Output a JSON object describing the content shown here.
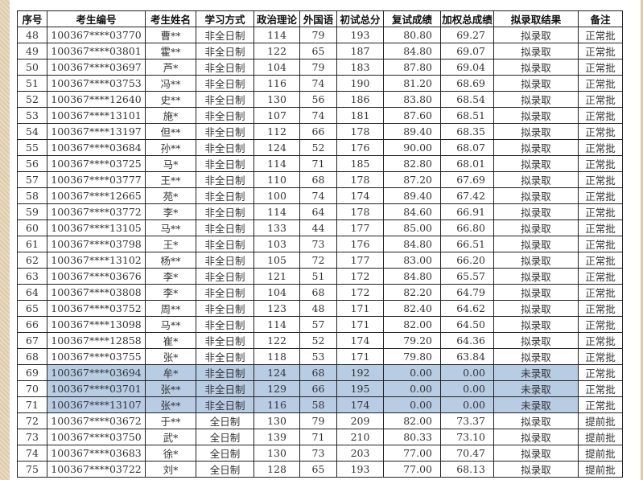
{
  "highlight_color": "#b8cce4",
  "headers": [
    "序号",
    "考生编号",
    "考生姓名",
    "学习方式",
    "政治理论",
    "外国语",
    "初试总分",
    "复试成绩",
    "加权总成绩",
    "拟录取结果",
    "备注"
  ],
  "rows": [
    {
      "no": "48",
      "id": "100367****03770",
      "name": "曹**",
      "mode": "非全日制",
      "politics": "114",
      "foreign": "79",
      "initial": "193",
      "retest": "80.80",
      "weighted": "69.27",
      "result": "拟录取",
      "note": "正常批",
      "highlight": false
    },
    {
      "no": "49",
      "id": "100367****03801",
      "name": "霍**",
      "mode": "非全日制",
      "politics": "122",
      "foreign": "65",
      "initial": "187",
      "retest": "84.80",
      "weighted": "69.07",
      "result": "拟录取",
      "note": "正常批",
      "highlight": false
    },
    {
      "no": "50",
      "id": "100367****03697",
      "name": "芦*",
      "mode": "非全日制",
      "politics": "104",
      "foreign": "79",
      "initial": "183",
      "retest": "87.80",
      "weighted": "69.04",
      "result": "拟录取",
      "note": "正常批",
      "highlight": false
    },
    {
      "no": "51",
      "id": "100367****03753",
      "name": "冯**",
      "mode": "非全日制",
      "politics": "116",
      "foreign": "74",
      "initial": "190",
      "retest": "81.20",
      "weighted": "68.69",
      "result": "拟录取",
      "note": "正常批",
      "highlight": false
    },
    {
      "no": "52",
      "id": "100367****12640",
      "name": "史**",
      "mode": "非全日制",
      "politics": "130",
      "foreign": "56",
      "initial": "186",
      "retest": "83.80",
      "weighted": "68.54",
      "result": "拟录取",
      "note": "正常批",
      "highlight": false
    },
    {
      "no": "53",
      "id": "100367****13101",
      "name": "施*",
      "mode": "非全日制",
      "politics": "107",
      "foreign": "74",
      "initial": "181",
      "retest": "87.60",
      "weighted": "68.51",
      "result": "拟录取",
      "note": "正常批",
      "highlight": false
    },
    {
      "no": "54",
      "id": "100367****13197",
      "name": "但**",
      "mode": "非全日制",
      "politics": "112",
      "foreign": "66",
      "initial": "178",
      "retest": "89.40",
      "weighted": "68.35",
      "result": "拟录取",
      "note": "正常批",
      "highlight": false
    },
    {
      "no": "55",
      "id": "100367****03684",
      "name": "孙**",
      "mode": "非全日制",
      "politics": "124",
      "foreign": "52",
      "initial": "176",
      "retest": "90.00",
      "weighted": "68.07",
      "result": "拟录取",
      "note": "正常批",
      "highlight": false
    },
    {
      "no": "56",
      "id": "100367****03725",
      "name": "马*",
      "mode": "非全日制",
      "politics": "114",
      "foreign": "71",
      "initial": "185",
      "retest": "82.80",
      "weighted": "68.01",
      "result": "拟录取",
      "note": "正常批",
      "highlight": false
    },
    {
      "no": "57",
      "id": "100367****03777",
      "name": "王**",
      "mode": "非全日制",
      "politics": "110",
      "foreign": "68",
      "initial": "178",
      "retest": "87.20",
      "weighted": "67.69",
      "result": "拟录取",
      "note": "正常批",
      "highlight": false
    },
    {
      "no": "58",
      "id": "100367****12665",
      "name": "苑*",
      "mode": "非全日制",
      "politics": "100",
      "foreign": "74",
      "initial": "174",
      "retest": "89.40",
      "weighted": "67.42",
      "result": "拟录取",
      "note": "正常批",
      "highlight": false
    },
    {
      "no": "59",
      "id": "100367****03772",
      "name": "李*",
      "mode": "非全日制",
      "politics": "114",
      "foreign": "64",
      "initial": "178",
      "retest": "84.60",
      "weighted": "66.91",
      "result": "拟录取",
      "note": "正常批",
      "highlight": false
    },
    {
      "no": "60",
      "id": "100367****13105",
      "name": "马**",
      "mode": "非全日制",
      "politics": "133",
      "foreign": "44",
      "initial": "177",
      "retest": "85.00",
      "weighted": "66.80",
      "result": "拟录取",
      "note": "正常批",
      "highlight": false
    },
    {
      "no": "61",
      "id": "100367****03798",
      "name": "王*",
      "mode": "非全日制",
      "politics": "103",
      "foreign": "73",
      "initial": "176",
      "retest": "84.80",
      "weighted": "66.51",
      "result": "拟录取",
      "note": "正常批",
      "highlight": false
    },
    {
      "no": "62",
      "id": "100367****13102",
      "name": "杨**",
      "mode": "非全日制",
      "politics": "105",
      "foreign": "72",
      "initial": "177",
      "retest": "83.00",
      "weighted": "66.20",
      "result": "拟录取",
      "note": "正常批",
      "highlight": false
    },
    {
      "no": "63",
      "id": "100367****03676",
      "name": "李*",
      "mode": "非全日制",
      "politics": "121",
      "foreign": "51",
      "initial": "172",
      "retest": "84.80",
      "weighted": "65.57",
      "result": "拟录取",
      "note": "正常批",
      "highlight": false
    },
    {
      "no": "64",
      "id": "100367****03808",
      "name": "李*",
      "mode": "非全日制",
      "politics": "104",
      "foreign": "68",
      "initial": "172",
      "retest": "82.20",
      "weighted": "64.79",
      "result": "拟录取",
      "note": "正常批",
      "highlight": false
    },
    {
      "no": "65",
      "id": "100367****03752",
      "name": "周**",
      "mode": "非全日制",
      "politics": "123",
      "foreign": "48",
      "initial": "171",
      "retest": "82.40",
      "weighted": "64.62",
      "result": "拟录取",
      "note": "正常批",
      "highlight": false
    },
    {
      "no": "66",
      "id": "100367****13098",
      "name": "马**",
      "mode": "非全日制",
      "politics": "114",
      "foreign": "57",
      "initial": "171",
      "retest": "82.00",
      "weighted": "64.50",
      "result": "拟录取",
      "note": "正常批",
      "highlight": false
    },
    {
      "no": "67",
      "id": "100367****12858",
      "name": "崔*",
      "mode": "非全日制",
      "politics": "122",
      "foreign": "52",
      "initial": "174",
      "retest": "79.20",
      "weighted": "64.36",
      "result": "拟录取",
      "note": "正常批",
      "highlight": false
    },
    {
      "no": "68",
      "id": "100367****03755",
      "name": "张*",
      "mode": "非全日制",
      "politics": "118",
      "foreign": "53",
      "initial": "171",
      "retest": "79.80",
      "weighted": "63.84",
      "result": "拟录取",
      "note": "正常批",
      "highlight": false
    },
    {
      "no": "69",
      "id": "100367****03694",
      "name": "牟*",
      "mode": "非全日制",
      "politics": "124",
      "foreign": "68",
      "initial": "192",
      "retest": "0.00",
      "weighted": "0.00",
      "result": "未录取",
      "note": "正常批",
      "highlight": true
    },
    {
      "no": "70",
      "id": "100367****03701",
      "name": "张**",
      "mode": "非全日制",
      "politics": "129",
      "foreign": "66",
      "initial": "195",
      "retest": "0.00",
      "weighted": "0.00",
      "result": "未录取",
      "note": "正常批",
      "highlight": true
    },
    {
      "no": "71",
      "id": "100367****13107",
      "name": "张**",
      "mode": "非全日制",
      "politics": "116",
      "foreign": "58",
      "initial": "174",
      "retest": "0.00",
      "weighted": "0.00",
      "result": "未录取",
      "note": "正常批",
      "highlight": true
    },
    {
      "no": "72",
      "id": "100367****03672",
      "name": "于**",
      "mode": "全日制",
      "politics": "130",
      "foreign": "79",
      "initial": "209",
      "retest": "82.00",
      "weighted": "73.37",
      "result": "拟录取",
      "note": "提前批",
      "highlight": false
    },
    {
      "no": "73",
      "id": "100367****03750",
      "name": "武*",
      "mode": "全日制",
      "politics": "139",
      "foreign": "71",
      "initial": "210",
      "retest": "80.33",
      "weighted": "73.10",
      "result": "拟录取",
      "note": "提前批",
      "highlight": false
    },
    {
      "no": "74",
      "id": "100367****03683",
      "name": "徐*",
      "mode": "全日制",
      "politics": "130",
      "foreign": "73",
      "initial": "203",
      "retest": "77.00",
      "weighted": "70.47",
      "result": "拟录取",
      "note": "提前批",
      "highlight": false
    },
    {
      "no": "75",
      "id": "100367****03722",
      "name": "刘*",
      "mode": "全日制",
      "politics": "128",
      "foreign": "65",
      "initial": "193",
      "retest": "77.00",
      "weighted": "68.13",
      "result": "拟录取",
      "note": "提前批",
      "highlight": false
    }
  ]
}
